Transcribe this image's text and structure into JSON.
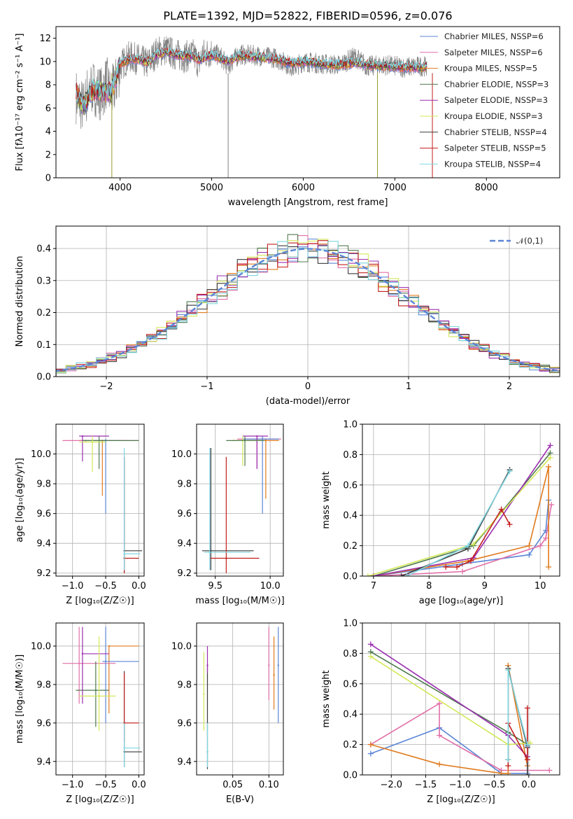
{
  "figure": {
    "title": "PLATE=1392, MJD=52822, FIBERID=0596, z=0.076"
  },
  "colors": {
    "chabrier_miles": "#5b85d6",
    "salpeter_miles": "#e16fa8",
    "kroupa_miles": "#e07b1f",
    "chabrier_elodie": "#4f7a4f",
    "salpeter_elodie": "#9b2fb0",
    "kroupa_elodie": "#d4e85a",
    "chabrier_stelib": "#3a3a3a",
    "salpeter_stelib": "#c41e1e",
    "kroupa_stelib": "#7fd6e0",
    "data": "#808080",
    "grid": "#b0b0b0"
  },
  "chart_data": [
    {
      "id": "spectrum",
      "type": "line",
      "xlabel": "wavelength [Angstrom, rest frame]",
      "ylabel": "Flux [fλ10⁻¹⁷ erg cm⁻² s⁻¹ A⁻¹]",
      "xlim": [
        3300,
        8800
      ],
      "ylim": [
        0,
        13
      ],
      "xticks": [
        4000,
        5000,
        6000,
        7000,
        8000
      ],
      "yticks": [
        0,
        2,
        4,
        6,
        8,
        10,
        12
      ],
      "grid": false,
      "legend_position": "upper right",
      "legend": [
        "Chabrier MILES, NSSP=6",
        "Salpeter MILES, NSSP=6",
        "Kroupa MILES, NSSP=5",
        "Chabrier ELODIE, NSSP=3",
        "Salpeter ELODIE, NSSP=3",
        "Kroupa ELODIE, NSSP=3",
        "Chabrier STELIB, NSSP=4",
        "Salpeter STELIB, NSSP=5",
        "Kroupa STELIB, NSSP=4"
      ],
      "data_points": [
        [
          3520,
          7.0
        ],
        [
          3600,
          6.0
        ],
        [
          3650,
          7.5
        ],
        [
          3700,
          7.8
        ],
        [
          3800,
          7.2
        ],
        [
          3850,
          8.2
        ],
        [
          3900,
          7.0
        ],
        [
          3950,
          8.0
        ],
        [
          4000,
          9.6
        ],
        [
          4100,
          10.4
        ],
        [
          4200,
          10.2
        ],
        [
          4300,
          9.8
        ],
        [
          4400,
          10.8
        ],
        [
          4500,
          11.0
        ],
        [
          4600,
          10.6
        ],
        [
          4700,
          10.4
        ],
        [
          4800,
          10.6
        ],
        [
          4862,
          9.8
        ],
        [
          4900,
          10.6
        ],
        [
          5000,
          10.8
        ],
        [
          5100,
          10.4
        ],
        [
          5175,
          9.6
        ],
        [
          5300,
          10.6
        ],
        [
          5500,
          10.5
        ],
        [
          5700,
          10.3
        ],
        [
          5893,
          9.5
        ],
        [
          6000,
          10.0
        ],
        [
          6200,
          9.8
        ],
        [
          6400,
          9.7
        ],
        [
          6563,
          10.4
        ],
        [
          6700,
          9.6
        ],
        [
          6900,
          9.7
        ],
        [
          7100,
          9.5
        ],
        [
          7300,
          9.6
        ],
        [
          7350,
          9.6
        ]
      ],
      "model_points": [
        [
          3520,
          7.3
        ],
        [
          3600,
          6.2
        ],
        [
          3700,
          7.6
        ],
        [
          3800,
          7.4
        ],
        [
          3900,
          7.3
        ],
        [
          4000,
          9.8
        ],
        [
          4100,
          10.2
        ],
        [
          4200,
          10.2
        ],
        [
          4300,
          9.9
        ],
        [
          4400,
          10.6
        ],
        [
          4500,
          10.8
        ],
        [
          4600,
          10.6
        ],
        [
          4700,
          10.5
        ],
        [
          4800,
          10.5
        ],
        [
          4862,
          10.1
        ],
        [
          5000,
          10.6
        ],
        [
          5175,
          10.0
        ],
        [
          5300,
          10.5
        ],
        [
          5500,
          10.4
        ],
        [
          5700,
          10.2
        ],
        [
          5893,
          9.8
        ],
        [
          6000,
          10.0
        ],
        [
          6200,
          9.8
        ],
        [
          6400,
          9.7
        ],
        [
          6563,
          9.9
        ],
        [
          6700,
          9.7
        ],
        [
          6900,
          9.6
        ],
        [
          7100,
          9.5
        ],
        [
          7300,
          9.5
        ],
        [
          7350,
          9.6
        ]
      ]
    },
    {
      "id": "residuals",
      "type": "line",
      "xlabel": "(data-model)/error",
      "ylabel": "Normed distribution",
      "xlim": [
        -2.5,
        2.5
      ],
      "ylim": [
        0,
        0.47
      ],
      "xticks": [
        -2,
        -1,
        0,
        1,
        2
      ],
      "yticks": [
        0.0,
        0.1,
        0.2,
        0.3,
        0.4
      ],
      "grid": true,
      "legend_position": "upper right",
      "legend": [
        "𝒩(0,1)"
      ],
      "hist_edges": [
        -2.5,
        2.5
      ],
      "hist_bins": 50,
      "gaussian": {
        "mean": 0,
        "sigma": 1
      }
    },
    {
      "id": "age_vs_Z",
      "type": "scatter",
      "xlabel": "Z [log₁₀(Z/Z☉)]",
      "ylabel": "age  [log₁₀(age/yr)]",
      "xlim": [
        -1.25,
        0.08
      ],
      "ylim": [
        9.18,
        10.2
      ],
      "xticks": [
        -1.0,
        -0.5,
        0.0
      ],
      "yticks": [
        9.2,
        9.4,
        9.6,
        9.8,
        10.0
      ],
      "grid": true,
      "errorbars": [
        {
          "model": "kroupa_miles",
          "x": -0.55,
          "y": 10.09,
          "x_lo": -0.9,
          "x_hi": -0.2,
          "y_lo": 9.72,
          "y_hi": 10.09
        },
        {
          "model": "salpeter_miles",
          "x": -0.8,
          "y": 10.09,
          "x_lo": -1.15,
          "x_hi": 0.0,
          "y_lo": 10.09,
          "y_hi": 10.09
        },
        {
          "model": "chabrier_miles",
          "x": -0.5,
          "y": 10.09,
          "x_lo": -0.85,
          "x_hi": -0.35,
          "y_lo": 9.6,
          "y_hi": 10.1
        },
        {
          "model": "chabrier_elodie",
          "x": -0.6,
          "y": 10.09,
          "x_lo": -0.85,
          "x_hi": 0.0,
          "y_lo": 9.9,
          "y_hi": 10.12
        },
        {
          "model": "salpeter_elodie",
          "x": -0.85,
          "y": 10.12,
          "x_lo": -0.9,
          "x_hi": -0.45,
          "y_lo": 9.95,
          "y_hi": 10.12
        },
        {
          "model": "kroupa_elodie",
          "x": -0.7,
          "y": 10.08,
          "x_lo": -0.9,
          "x_hi": -0.5,
          "y_lo": 9.88,
          "y_hi": 10.12
        },
        {
          "model": "chabrier_stelib",
          "x": -0.22,
          "y": 9.35,
          "x_lo": -0.22,
          "x_hi": 0.05,
          "y_lo": 9.2,
          "y_hi": 9.98
        },
        {
          "model": "salpeter_stelib",
          "x": -0.22,
          "y": 9.3,
          "x_lo": -0.22,
          "x_hi": 0.0,
          "y_lo": 9.2,
          "y_hi": 9.98
        },
        {
          "model": "kroupa_stelib",
          "x": -0.22,
          "y": 9.33,
          "x_lo": -0.22,
          "x_hi": 0.02,
          "y_lo": 9.22,
          "y_hi": 10.04
        }
      ]
    },
    {
      "id": "age_vs_mass",
      "type": "scatter",
      "xlabel": "mass [log₁₀(M/M☉)]",
      "ylabel": "",
      "xlim": [
        9.33,
        10.12
      ],
      "ylim": [
        9.18,
        10.2
      ],
      "xticks": [
        9.5,
        10.0
      ],
      "yticks": [
        9.2,
        9.4,
        9.6,
        9.8,
        10.0
      ],
      "grid": true,
      "errorbars": [
        {
          "model": "salpeter_miles",
          "x": 9.88,
          "y": 10.1,
          "x_lo": 9.7,
          "x_hi": 10.1,
          "y_lo": 9.9,
          "y_hi": 10.12
        },
        {
          "model": "kroupa_miles",
          "x": 9.96,
          "y": 10.09,
          "x_lo": 9.65,
          "x_hi": 10.08,
          "y_lo": 9.7,
          "y_hi": 10.1
        },
        {
          "model": "chabrier_miles",
          "x": 9.93,
          "y": 10.1,
          "x_lo": 9.75,
          "x_hi": 10.08,
          "y_lo": 9.6,
          "y_hi": 10.12
        },
        {
          "model": "salpeter_elodie",
          "x": 9.88,
          "y": 10.12,
          "x_lo": 9.75,
          "x_hi": 9.98,
          "y_lo": 9.9,
          "y_hi": 10.12
        },
        {
          "model": "kroupa_elodie",
          "x": 9.75,
          "y": 10.09,
          "x_lo": 9.65,
          "x_hi": 9.95,
          "y_lo": 9.92,
          "y_hi": 10.12
        },
        {
          "model": "chabrier_elodie",
          "x": 9.77,
          "y": 10.09,
          "x_lo": 9.6,
          "x_hi": 9.95,
          "y_lo": 9.92,
          "y_hi": 10.12
        },
        {
          "model": "chabrier_stelib",
          "x": 9.46,
          "y": 9.35,
          "x_lo": 9.38,
          "x_hi": 9.85,
          "y_lo": 9.22,
          "y_hi": 10.04
        },
        {
          "model": "salpeter_stelib",
          "x": 9.6,
          "y": 9.3,
          "x_lo": 9.45,
          "x_hi": 9.9,
          "y_lo": 9.2,
          "y_hi": 9.98
        },
        {
          "model": "kroupa_stelib",
          "x": 9.45,
          "y": 9.34,
          "x_lo": 9.4,
          "x_hi": 9.82,
          "y_lo": 9.22,
          "y_hi": 10.04
        }
      ]
    },
    {
      "id": "massweight_vs_age",
      "type": "line",
      "xlabel": "age  [log₁₀(age/yr)]",
      "ylabel": "mass weight",
      "xlim": [
        6.8,
        10.35
      ],
      "ylim": [
        0,
        1.0
      ],
      "xticks": [
        7,
        8,
        9,
        10
      ],
      "yticks": [
        0.0,
        0.2,
        0.4,
        0.6,
        0.8,
        1.0
      ],
      "grid": true,
      "series": [
        {
          "model": "chabrier_miles",
          "x": [
            7.0,
            8.6,
            9.8,
            10.1,
            10.15
          ],
          "y": [
            0.0,
            0.08,
            0.14,
            0.3,
            0.5
          ]
        },
        {
          "model": "salpeter_miles",
          "x": [
            7.0,
            8.6,
            10.0,
            10.1,
            10.2
          ],
          "y": [
            0.0,
            0.03,
            0.2,
            0.25,
            0.47
          ]
        },
        {
          "model": "kroupa_miles",
          "x": [
            7.0,
            8.7,
            9.8,
            10.15,
            10.15
          ],
          "y": [
            0.0,
            0.1,
            0.2,
            0.72,
            0.06
          ]
        },
        {
          "model": "chabrier_elodie",
          "x": [
            7.0,
            8.8,
            10.18
          ],
          "y": [
            0.0,
            0.2,
            0.81
          ]
        },
        {
          "model": "salpeter_elodie",
          "x": [
            7.0,
            8.8,
            10.18
          ],
          "y": [
            0.0,
            0.12,
            0.86
          ]
        },
        {
          "model": "kroupa_elodie",
          "x": [
            6.9,
            8.8,
            10.18
          ],
          "y": [
            0.0,
            0.21,
            0.78
          ]
        },
        {
          "model": "chabrier_stelib",
          "x": [
            7.5,
            8.7,
            9.45
          ],
          "y": [
            0.0,
            0.18,
            0.7
          ]
        },
        {
          "model": "salpeter_stelib",
          "x": [
            8.3,
            8.5,
            8.75,
            9.3,
            9.45
          ],
          "y": [
            0.06,
            0.06,
            0.1,
            0.44,
            0.34
          ]
        },
        {
          "model": "kroupa_stelib",
          "x": [
            7.6,
            8.7,
            9.45
          ],
          "y": [
            0.0,
            0.2,
            0.69
          ]
        }
      ]
    },
    {
      "id": "mass_vs_Z",
      "type": "scatter",
      "xlabel": "Z [log₁₀(Z/Z☉)]",
      "ylabel": "mass [log₁₀(M/M☉)]",
      "xlim": [
        -1.25,
        0.08
      ],
      "ylim": [
        9.33,
        10.12
      ],
      "xticks": [
        -1.0,
        -0.5,
        0.0
      ],
      "yticks": [
        9.4,
        9.6,
        9.8,
        10.0
      ],
      "grid": true,
      "errorbars": [
        {
          "model": "kroupa_miles",
          "x": -0.45,
          "y": 10.0,
          "x_lo": -0.45,
          "x_hi": 0.0,
          "y_lo": 9.65,
          "y_hi": 10.0
        },
        {
          "model": "salpeter_miles",
          "x": -0.9,
          "y": 9.91,
          "x_lo": -1.15,
          "x_hi": -0.35,
          "y_lo": 9.7,
          "y_hi": 10.1
        },
        {
          "model": "chabrier_miles",
          "x": -0.5,
          "y": 9.92,
          "x_lo": -0.55,
          "x_hi": 0.0,
          "y_lo": 9.6,
          "y_hi": 10.1
        },
        {
          "model": "chabrier_elodie",
          "x": -0.65,
          "y": 9.77,
          "x_lo": -0.95,
          "x_hi": -0.45,
          "y_lo": 9.58,
          "y_hi": 9.92
        },
        {
          "model": "salpeter_elodie",
          "x": -0.85,
          "y": 9.96,
          "x_lo": -0.85,
          "x_hi": -0.45,
          "y_lo": 9.7,
          "y_hi": 10.1
        },
        {
          "model": "kroupa_elodie",
          "x": -0.6,
          "y": 9.74,
          "x_lo": -0.9,
          "x_hi": -0.35,
          "y_lo": 9.56,
          "y_hi": 10.05
        },
        {
          "model": "chabrier_stelib",
          "x": -0.22,
          "y": 9.45,
          "x_lo": -0.22,
          "x_hi": 0.05,
          "y_lo": 9.37,
          "y_hi": 9.87
        },
        {
          "model": "salpeter_stelib",
          "x": -0.22,
          "y": 9.6,
          "x_lo": -0.22,
          "x_hi": 0.0,
          "y_lo": 9.5,
          "y_hi": 9.86
        },
        {
          "model": "kroupa_stelib",
          "x": -0.22,
          "y": 9.47,
          "x_lo": -0.22,
          "x_hi": 0.02,
          "y_lo": 9.37,
          "y_hi": 9.6
        }
      ]
    },
    {
      "id": "mass_vs_ebv",
      "type": "scatter",
      "xlabel": "E(B-V)",
      "ylabel": "",
      "xlim": [
        0.0,
        0.12
      ],
      "ylim": [
        9.33,
        10.12
      ],
      "xticks": [
        0.05,
        0.1
      ],
      "yticks": [
        9.4,
        9.6,
        9.8,
        10.0
      ],
      "grid": true,
      "errorbars": [
        {
          "model": "chabrier_stelib",
          "x": 0.015,
          "y": 9.45,
          "y_lo": 9.36,
          "y_hi": 9.9
        },
        {
          "model": "salpeter_elodie",
          "x": 0.015,
          "y": 9.9,
          "y_lo": 9.86,
          "y_hi": 10.0
        },
        {
          "model": "kroupa_elodie",
          "x": 0.01,
          "y": 9.75,
          "y_lo": 9.56,
          "y_hi": 9.97
        },
        {
          "model": "kroupa_stelib",
          "x": 0.015,
          "y": 9.45,
          "y_lo": 9.37,
          "y_hi": 9.6
        },
        {
          "model": "salpeter_miles",
          "x": 0.1,
          "y": 9.9,
          "y_lo": 9.72,
          "y_hi": 10.1
        },
        {
          "model": "kroupa_miles",
          "x": 0.107,
          "y": 9.85,
          "y_lo": 9.67,
          "y_hi": 10.05
        },
        {
          "model": "chabrier_miles",
          "x": 0.113,
          "y": 9.9,
          "y_lo": 9.6,
          "y_hi": 10.1
        }
      ]
    },
    {
      "id": "massweight_vs_Z",
      "type": "line",
      "xlabel": "Z [log₁₀(Z/Z☉)]",
      "ylabel": "mass weight",
      "xlim": [
        -2.42,
        0.45
      ],
      "ylim": [
        0,
        1.0
      ],
      "xticks": [
        -2.0,
        -1.5,
        -1.0,
        -0.5,
        0.0
      ],
      "yticks": [
        0.0,
        0.2,
        0.4,
        0.6,
        0.8,
        1.0
      ],
      "grid": true,
      "series": [
        {
          "model": "chabrier_miles",
          "x": [
            -2.3,
            -1.3,
            -0.4,
            -0.02,
            -0.02
          ],
          "y": [
            0.14,
            0.31,
            0.01,
            0.01,
            0.19
          ]
        },
        {
          "model": "salpeter_miles",
          "x": [
            -2.3,
            -1.3,
            -1.3,
            -0.4,
            0.3
          ],
          "y": [
            0.2,
            0.47,
            0.26,
            0.03,
            0.03
          ]
        },
        {
          "model": "kroupa_miles",
          "x": [
            -2.3,
            -1.3,
            -0.4,
            -0.3,
            -0.3,
            -0.02
          ],
          "y": [
            0.2,
            0.07,
            0.01,
            0.01,
            0.72,
            0.06
          ]
        },
        {
          "model": "chabrier_elodie",
          "x": [
            -2.3,
            -0.3,
            -0.02
          ],
          "y": [
            0.81,
            0.28,
            0.2
          ]
        },
        {
          "model": "salpeter_elodie",
          "x": [
            -2.3,
            -0.3,
            -0.02
          ],
          "y": [
            0.86,
            0.26,
            0.12
          ]
        },
        {
          "model": "kroupa_elodie",
          "x": [
            -2.3,
            -0.3,
            0.02
          ],
          "y": [
            0.78,
            0.2,
            0.21
          ]
        },
        {
          "model": "chabrier_stelib",
          "x": [
            -0.3,
            -0.3,
            -0.02,
            -0.02
          ],
          "y": [
            0.1,
            0.7,
            0.18,
            0.0
          ]
        },
        {
          "model": "salpeter_stelib",
          "x": [
            -0.3,
            -0.3,
            -0.02,
            -0.02
          ],
          "y": [
            0.06,
            0.34,
            0.1,
            0.44
          ]
        },
        {
          "model": "kroupa_stelib",
          "x": [
            -0.3,
            -0.3,
            -0.02
          ],
          "y": [
            0.1,
            0.69,
            0.2
          ]
        }
      ]
    }
  ],
  "order": [
    "chabrier_miles",
    "salpeter_miles",
    "kroupa_miles",
    "chabrier_elodie",
    "salpeter_elodie",
    "kroupa_elodie",
    "chabrier_stelib",
    "salpeter_stelib",
    "kroupa_stelib"
  ]
}
